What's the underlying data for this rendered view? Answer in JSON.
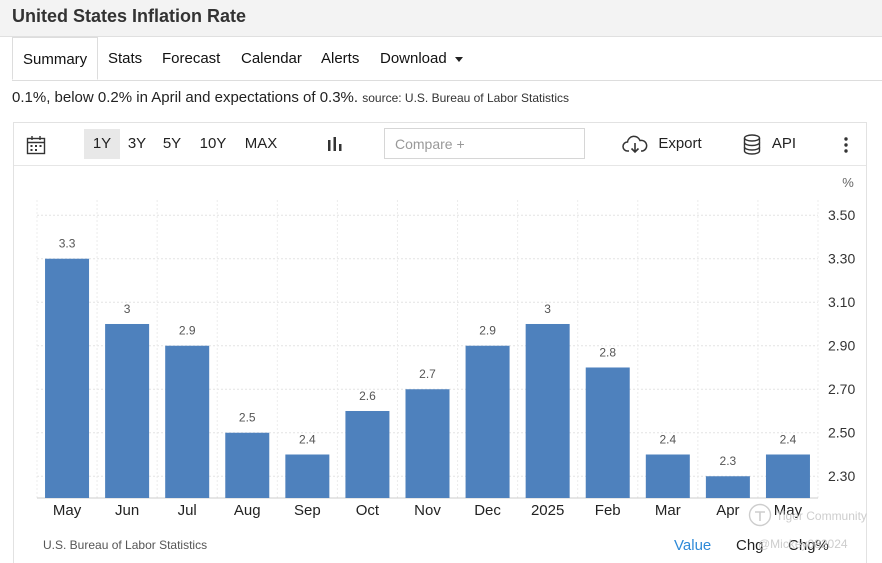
{
  "header": {
    "title": "United States Inflation Rate"
  },
  "tabs": [
    {
      "label": "Summary",
      "active": true
    },
    {
      "label": "Stats"
    },
    {
      "label": "Forecast"
    },
    {
      "label": "Calendar"
    },
    {
      "label": "Alerts"
    },
    {
      "label": "Download"
    }
  ],
  "summary": {
    "text": "0.1%, below 0.2% in April and expectations of 0.3%.",
    "source": "source: U.S. Bureau of Labor Statistics"
  },
  "toolbar": {
    "ranges": [
      "1Y",
      "3Y",
      "5Y",
      "10Y",
      "MAX"
    ],
    "active_range": "1Y",
    "compare_placeholder": "Compare +",
    "export_label": "Export",
    "api_label": "API"
  },
  "chart_data": {
    "type": "bar",
    "categories": [
      "May",
      "Jun",
      "Jul",
      "Aug",
      "Sep",
      "Oct",
      "Nov",
      "Dec",
      "2025",
      "Feb",
      "Mar",
      "Apr",
      "May"
    ],
    "values": [
      3.3,
      3,
      2.9,
      2.5,
      2.4,
      2.6,
      2.7,
      2.9,
      3,
      2.8,
      2.4,
      2.3,
      2.4
    ],
    "data_labels": [
      "3.3",
      "3",
      "2.9",
      "2.5",
      "2.4",
      "2.6",
      "2.7",
      "2.9",
      "3",
      "2.8",
      "2.4",
      "2.3",
      "2.4"
    ],
    "y_ticks": [
      "2.30",
      "2.50",
      "2.70",
      "2.90",
      "3.10",
      "3.30",
      "3.50"
    ],
    "ylim": [
      2.2,
      3.57
    ],
    "y_unit": "%",
    "bar_color": "#4e81bd",
    "grid": true
  },
  "footer": {
    "source": "U.S. Bureau of Labor Statistics",
    "links": [
      "Value",
      "Chg",
      "Chg%"
    ]
  },
  "watermark": {
    "line1": "Tiger Community",
    "line2": "@Mickey082024"
  }
}
